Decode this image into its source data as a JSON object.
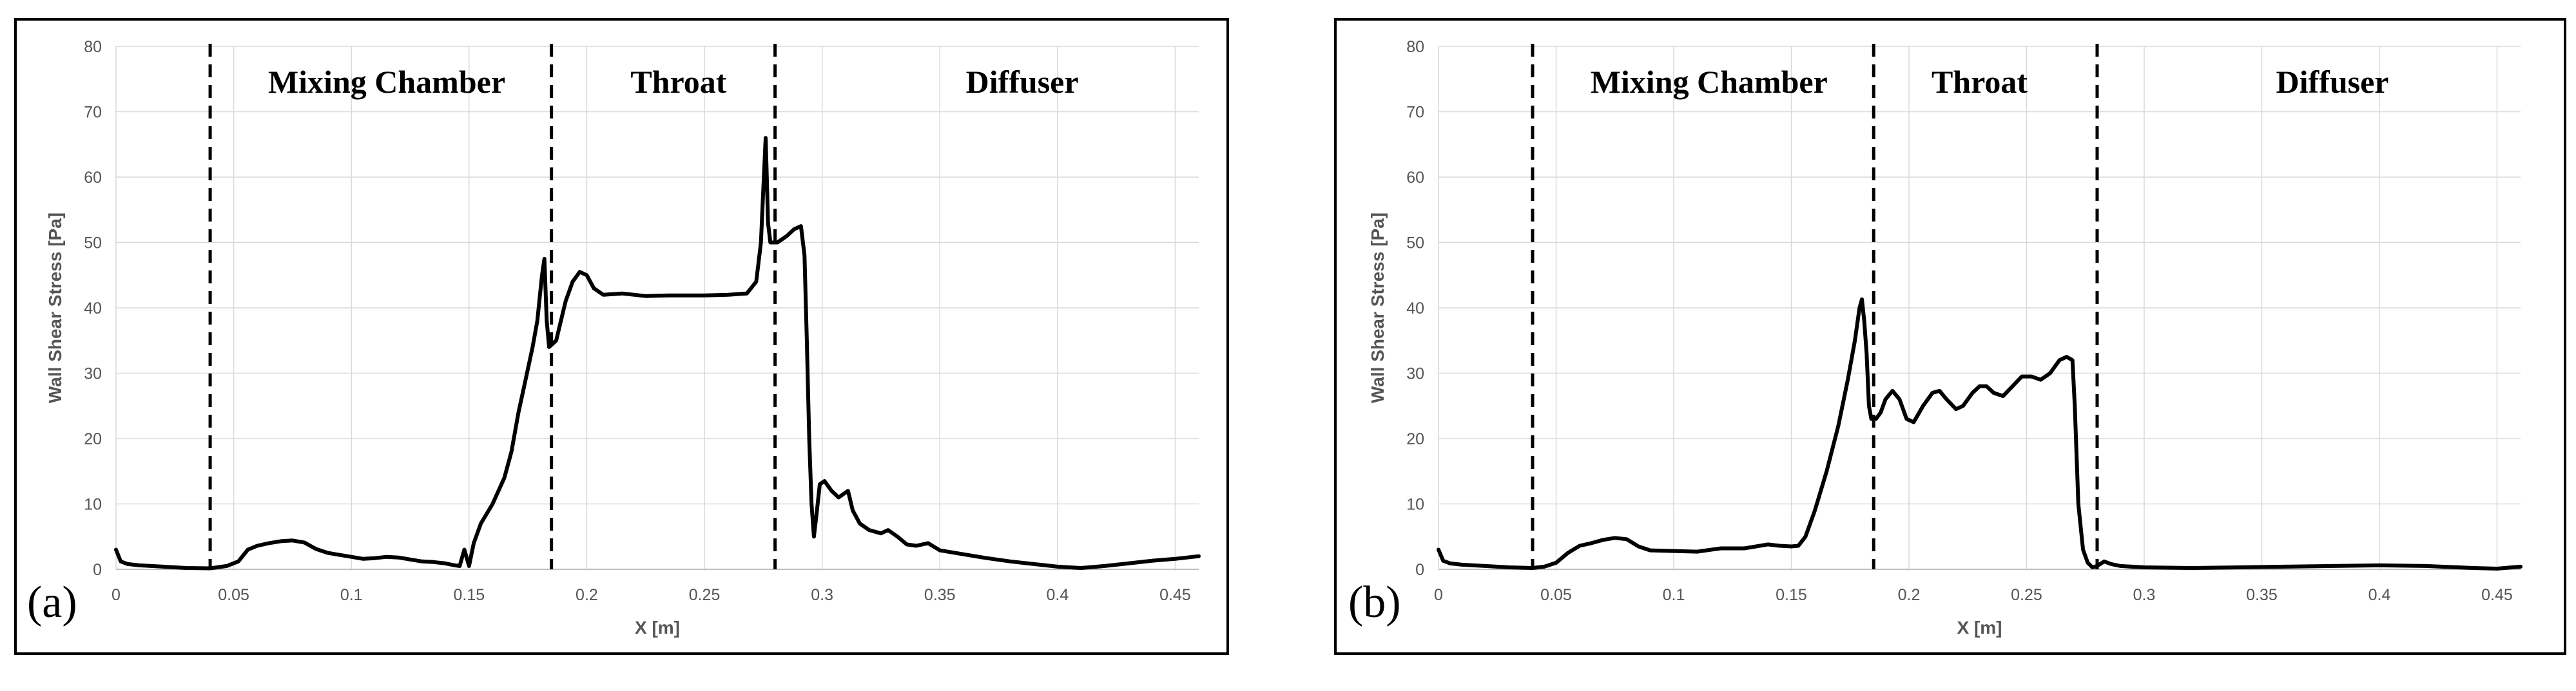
{
  "figure": {
    "colors": {
      "line": "#000000",
      "grid": "#d9d9d9",
      "frame": "#000000",
      "tick_text": "#555555"
    }
  },
  "chart_data": [
    {
      "type": "line",
      "panel_label": "(a)",
      "xlabel": "X [m]",
      "ylabel": "Wall Shear Stress [Pa]",
      "xlim": [
        0,
        0.46
      ],
      "ylim": [
        0,
        80
      ],
      "xticks": [
        0,
        0.05,
        0.1,
        0.15,
        0.2,
        0.25,
        0.3,
        0.35,
        0.4,
        0.45
      ],
      "xtick_labels": [
        "0",
        "0.05",
        "0.1",
        "0.15",
        "0.2",
        "0.25",
        "0.3",
        "0.35",
        "0.4",
        "0.45"
      ],
      "yticks": [
        0,
        10,
        20,
        30,
        40,
        50,
        60,
        70,
        80
      ],
      "ytick_labels": [
        "0",
        "10",
        "20",
        "30",
        "40",
        "50",
        "60",
        "70",
        "80"
      ],
      "grid": true,
      "dividers": [
        0.04,
        0.185,
        0.28
      ],
      "regions": [
        {
          "label": "Mixing Chamber",
          "x": 0.115
        },
        {
          "label": "Throat",
          "x": 0.239
        },
        {
          "label": "Diffuser",
          "x": 0.385
        }
      ],
      "series": [
        {
          "name": "wall shear stress",
          "points": [
            [
              0,
              3
            ],
            [
              0.002,
              1.2
            ],
            [
              0.005,
              0.8
            ],
            [
              0.01,
              0.6
            ],
            [
              0.02,
              0.4
            ],
            [
              0.03,
              0.2
            ],
            [
              0.04,
              0.15
            ],
            [
              0.047,
              0.5
            ],
            [
              0.052,
              1.2
            ],
            [
              0.056,
              3
            ],
            [
              0.06,
              3.6
            ],
            [
              0.065,
              4
            ],
            [
              0.07,
              4.3
            ],
            [
              0.075,
              4.4
            ],
            [
              0.08,
              4.1
            ],
            [
              0.085,
              3.1
            ],
            [
              0.09,
              2.5
            ],
            [
              0.095,
              2.2
            ],
            [
              0.1,
              1.9
            ],
            [
              0.105,
              1.6
            ],
            [
              0.11,
              1.7
            ],
            [
              0.115,
              1.9
            ],
            [
              0.12,
              1.8
            ],
            [
              0.125,
              1.5
            ],
            [
              0.13,
              1.2
            ],
            [
              0.135,
              1.1
            ],
            [
              0.14,
              0.9
            ],
            [
              0.144,
              0.6
            ],
            [
              0.146,
              0.5
            ],
            [
              0.148,
              3
            ],
            [
              0.15,
              0.5
            ],
            [
              0.152,
              4
            ],
            [
              0.155,
              7
            ],
            [
              0.16,
              10
            ],
            [
              0.165,
              14
            ],
            [
              0.168,
              18
            ],
            [
              0.171,
              24
            ],
            [
              0.174,
              29
            ],
            [
              0.177,
              34
            ],
            [
              0.179,
              38
            ],
            [
              0.181,
              45
            ],
            [
              0.182,
              47.5
            ],
            [
              0.183,
              38
            ],
            [
              0.184,
              34
            ],
            [
              0.187,
              35
            ],
            [
              0.189,
              38
            ],
            [
              0.191,
              41
            ],
            [
              0.194,
              44
            ],
            [
              0.197,
              45.5
            ],
            [
              0.2,
              45
            ],
            [
              0.203,
              43
            ],
            [
              0.207,
              42
            ],
            [
              0.215,
              42.2
            ],
            [
              0.225,
              41.8
            ],
            [
              0.235,
              41.9
            ],
            [
              0.25,
              41.9
            ],
            [
              0.26,
              42
            ],
            [
              0.268,
              42.2
            ],
            [
              0.272,
              44
            ],
            [
              0.274,
              50
            ],
            [
              0.275,
              58
            ],
            [
              0.276,
              66
            ],
            [
              0.2765,
              60
            ],
            [
              0.277,
              53
            ],
            [
              0.278,
              50
            ],
            [
              0.281,
              50
            ],
            [
              0.285,
              51
            ],
            [
              0.288,
              52
            ],
            [
              0.291,
              52.5
            ],
            [
              0.2925,
              48
            ],
            [
              0.2935,
              35
            ],
            [
              0.2945,
              20
            ],
            [
              0.2955,
              10
            ],
            [
              0.2965,
              5
            ],
            [
              0.2975,
              8
            ],
            [
              0.299,
              13
            ],
            [
              0.301,
              13.5
            ],
            [
              0.304,
              12
            ],
            [
              0.307,
              11
            ],
            [
              0.309,
              11.5
            ],
            [
              0.311,
              12
            ],
            [
              0.313,
              9
            ],
            [
              0.316,
              7
            ],
            [
              0.32,
              6
            ],
            [
              0.325,
              5.5
            ],
            [
              0.328,
              6
            ],
            [
              0.332,
              5
            ],
            [
              0.336,
              3.8
            ],
            [
              0.34,
              3.6
            ],
            [
              0.345,
              4
            ],
            [
              0.35,
              2.9
            ],
            [
              0.36,
              2.3
            ],
            [
              0.37,
              1.7
            ],
            [
              0.38,
              1.2
            ],
            [
              0.39,
              0.8
            ],
            [
              0.4,
              0.4
            ],
            [
              0.41,
              0.2
            ],
            [
              0.42,
              0.5
            ],
            [
              0.43,
              0.9
            ],
            [
              0.44,
              1.3
            ],
            [
              0.45,
              1.6
            ],
            [
              0.46,
              2
            ]
          ]
        }
      ]
    },
    {
      "type": "line",
      "panel_label": "(b)",
      "xlabel": "X [m]",
      "ylabel": "Wall Shear Stress [Pa]",
      "xlim": [
        0,
        0.46
      ],
      "ylim": [
        0,
        80
      ],
      "xticks": [
        0,
        0.05,
        0.1,
        0.15,
        0.2,
        0.25,
        0.3,
        0.35,
        0.4,
        0.45
      ],
      "xtick_labels": [
        "0",
        "0.05",
        "0.1",
        "0.15",
        "0.2",
        "0.25",
        "0.3",
        "0.35",
        "0.4",
        "0.45"
      ],
      "yticks": [
        0,
        10,
        20,
        30,
        40,
        50,
        60,
        70,
        80
      ],
      "ytick_labels": [
        "0",
        "10",
        "20",
        "30",
        "40",
        "50",
        "60",
        "70",
        "80"
      ],
      "grid": true,
      "dividers": [
        0.04,
        0.185,
        0.28
      ],
      "regions": [
        {
          "label": "Mixing Chamber",
          "x": 0.115
        },
        {
          "label": "Throat",
          "x": 0.23
        },
        {
          "label": "Diffuser",
          "x": 0.38
        }
      ],
      "series": [
        {
          "name": "wall shear stress",
          "points": [
            [
              0,
              3
            ],
            [
              0.002,
              1.3
            ],
            [
              0.005,
              0.9
            ],
            [
              0.01,
              0.7
            ],
            [
              0.02,
              0.5
            ],
            [
              0.03,
              0.3
            ],
            [
              0.04,
              0.2
            ],
            [
              0.045,
              0.4
            ],
            [
              0.05,
              1
            ],
            [
              0.055,
              2.5
            ],
            [
              0.06,
              3.6
            ],
            [
              0.065,
              4
            ],
            [
              0.07,
              4.5
            ],
            [
              0.075,
              4.8
            ],
            [
              0.08,
              4.6
            ],
            [
              0.085,
              3.5
            ],
            [
              0.09,
              2.9
            ],
            [
              0.1,
              2.8
            ],
            [
              0.11,
              2.7
            ],
            [
              0.12,
              3.2
            ],
            [
              0.13,
              3.2
            ],
            [
              0.135,
              3.5
            ],
            [
              0.14,
              3.8
            ],
            [
              0.145,
              3.6
            ],
            [
              0.15,
              3.5
            ],
            [
              0.153,
              3.6
            ],
            [
              0.156,
              5
            ],
            [
              0.16,
              9
            ],
            [
              0.165,
              15
            ],
            [
              0.17,
              22
            ],
            [
              0.174,
              29
            ],
            [
              0.177,
              35
            ],
            [
              0.179,
              40
            ],
            [
              0.18,
              41.3
            ],
            [
              0.181,
              38
            ],
            [
              0.182,
              33
            ],
            [
              0.183,
              25
            ],
            [
              0.184,
              23
            ],
            [
              0.186,
              23
            ],
            [
              0.188,
              24
            ],
            [
              0.19,
              26
            ],
            [
              0.193,
              27.3
            ],
            [
              0.196,
              26
            ],
            [
              0.199,
              23
            ],
            [
              0.202,
              22.5
            ],
            [
              0.206,
              25
            ],
            [
              0.21,
              27
            ],
            [
              0.213,
              27.3
            ],
            [
              0.216,
              26
            ],
            [
              0.22,
              24.5
            ],
            [
              0.223,
              25
            ],
            [
              0.227,
              27
            ],
            [
              0.23,
              28
            ],
            [
              0.233,
              28
            ],
            [
              0.236,
              27
            ],
            [
              0.24,
              26.5
            ],
            [
              0.244,
              28
            ],
            [
              0.248,
              29.5
            ],
            [
              0.252,
              29.5
            ],
            [
              0.256,
              29
            ],
            [
              0.26,
              30
            ],
            [
              0.264,
              32
            ],
            [
              0.267,
              32.5
            ],
            [
              0.2695,
              32
            ],
            [
              0.2705,
              25
            ],
            [
              0.272,
              10
            ],
            [
              0.274,
              3
            ],
            [
              0.276,
              1
            ],
            [
              0.278,
              0.3
            ],
            [
              0.28,
              0.5
            ],
            [
              0.283,
              1.2
            ],
            [
              0.286,
              0.8
            ],
            [
              0.29,
              0.5
            ],
            [
              0.3,
              0.3
            ],
            [
              0.32,
              0.2
            ],
            [
              0.34,
              0.3
            ],
            [
              0.36,
              0.4
            ],
            [
              0.38,
              0.5
            ],
            [
              0.4,
              0.6
            ],
            [
              0.42,
              0.5
            ],
            [
              0.44,
              0.2
            ],
            [
              0.45,
              0.1
            ],
            [
              0.46,
              0.4
            ]
          ]
        }
      ]
    }
  ]
}
